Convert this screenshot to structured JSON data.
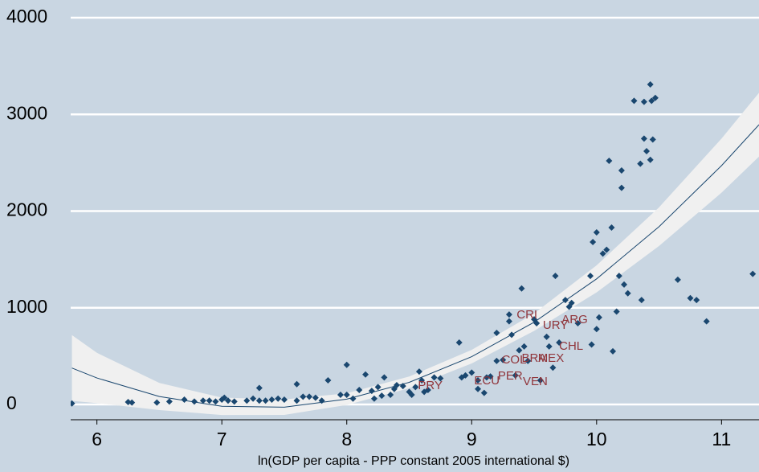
{
  "chart_data": {
    "type": "scatter",
    "x_label": "ln(GDP per capita - PPP constant 2005 international $)",
    "xlim": [
      5.79,
      11.3
    ],
    "ylim": [
      -158,
      4183
    ],
    "xticks": [
      6,
      7,
      8,
      9,
      10,
      11
    ],
    "yticks": [
      0,
      1000,
      2000,
      3000,
      4000
    ],
    "grid": true,
    "points": {
      "color": "#1a476f",
      "x": [
        5.8,
        6.25,
        6.28,
        6.48,
        6.58,
        6.7,
        6.78,
        6.85,
        6.9,
        6.95,
        7.0,
        7.02,
        7.05,
        7.1,
        7.2,
        7.25,
        7.3,
        7.3,
        7.35,
        7.4,
        7.45,
        7.5,
        7.6,
        7.6,
        7.65,
        7.7,
        7.75,
        7.8,
        7.85,
        7.95,
        8.0,
        8.0,
        8.05,
        8.1,
        8.15,
        8.2,
        8.22,
        8.25,
        8.28,
        8.3,
        8.35,
        8.38,
        8.4,
        8.45,
        8.5,
        8.52,
        8.55,
        8.58,
        8.6,
        8.62,
        8.65,
        8.7,
        8.75,
        8.9,
        8.92,
        8.95,
        9.0,
        9.05,
        9.1,
        9.05,
        9.12,
        9.15,
        9.2,
        9.2,
        9.25,
        9.3,
        9.3,
        9.32,
        9.35,
        9.38,
        9.4,
        9.42,
        9.45,
        9.5,
        9.52,
        9.55,
        9.6,
        9.62,
        9.65,
        9.67,
        9.7,
        9.75,
        9.78,
        9.8,
        9.85,
        9.95,
        9.96,
        9.97,
        10.0,
        10.0,
        10.02,
        10.05,
        10.08,
        10.1,
        10.12,
        10.13,
        10.16,
        10.18,
        10.2,
        10.2,
        10.22,
        10.25,
        10.3,
        10.35,
        10.36,
        10.38,
        10.38,
        10.4,
        10.43,
        10.43,
        10.44,
        10.45,
        10.47,
        10.65,
        10.75,
        10.8,
        10.88,
        11.25
      ],
      "y": [
        10,
        25,
        20,
        20,
        30,
        50,
        30,
        40,
        40,
        30,
        50,
        70,
        40,
        30,
        40,
        60,
        170,
        40,
        40,
        50,
        60,
        50,
        210,
        40,
        80,
        80,
        70,
        40,
        250,
        100,
        410,
        100,
        60,
        150,
        310,
        140,
        60,
        180,
        90,
        280,
        100,
        160,
        200,
        190,
        130,
        100,
        180,
        340,
        250,
        130,
        150,
        280,
        270,
        640,
        280,
        300,
        330,
        250,
        120,
        160,
        280,
        290,
        740,
        450,
        460,
        930,
        860,
        720,
        300,
        560,
        1200,
        600,
        450,
        880,
        840,
        250,
        700,
        600,
        380,
        1330,
        640,
        1080,
        1010,
        1050,
        840,
        1330,
        620,
        1680,
        1780,
        780,
        900,
        1560,
        1600,
        2520,
        1830,
        550,
        960,
        1330,
        2420,
        2240,
        1240,
        1150,
        3140,
        2490,
        1080,
        3130,
        2750,
        2620,
        3310,
        2530,
        3140,
        2740,
        3170,
        1290,
        1100,
        1080,
        860,
        1350
      ]
    },
    "fit": {
      "color": "#1a476f",
      "band_color": "#f0f0f0",
      "x": [
        5.8,
        6,
        6.5,
        7,
        7.5,
        8,
        8.5,
        9,
        9.5,
        10,
        10.5,
        11,
        11.3
      ],
      "y": [
        377,
        274,
        82,
        -19,
        -28,
        55,
        229,
        494,
        851,
        1299,
        1839,
        2470,
        2893
      ],
      "lower": [
        37,
        14,
        -58,
        -109,
        -108,
        -5,
        169,
        424,
        761,
        1159,
        1639,
        2190,
        2563
      ],
      "upper": [
        717,
        534,
        222,
        71,
        52,
        115,
        289,
        564,
        941,
        1439,
        2039,
        2750,
        3223
      ]
    },
    "annotation_color": "#90353b",
    "annotations": [
      {
        "text": "CRI",
        "x": 9.36,
        "y": 923
      },
      {
        "text": "URY",
        "x": 9.57,
        "y": 815
      },
      {
        "text": "ARG",
        "x": 9.72,
        "y": 873
      },
      {
        "text": "CHL",
        "x": 9.7,
        "y": 599
      },
      {
        "text": "COL",
        "x": 9.24,
        "y": 457
      },
      {
        "text": "BRA",
        "x": 9.4,
        "y": 474
      },
      {
        "text": "MEX",
        "x": 9.53,
        "y": 474
      },
      {
        "text": "PER",
        "x": 9.21,
        "y": 291
      },
      {
        "text": "ECU",
        "x": 9.02,
        "y": 241
      },
      {
        "text": "VEN",
        "x": 9.41,
        "y": 233
      },
      {
        "text": "PRY",
        "x": 8.57,
        "y": 191
      }
    ]
  }
}
